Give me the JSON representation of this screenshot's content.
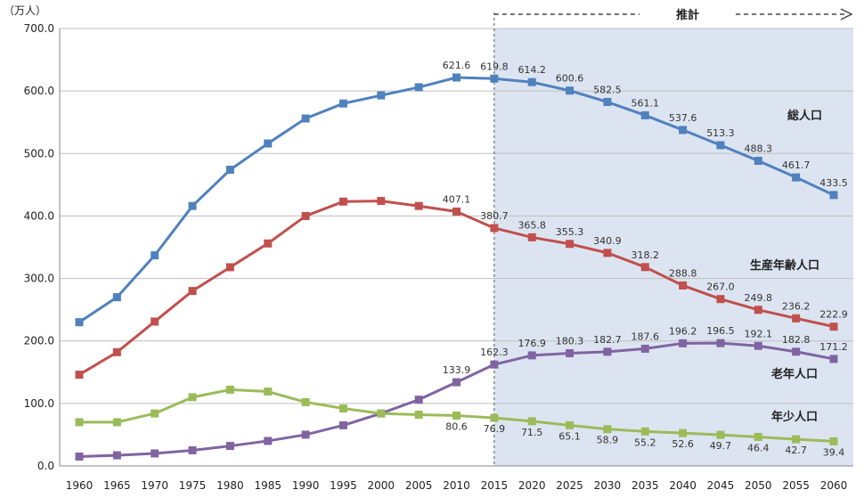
{
  "chart_data": {
    "type": "line",
    "unit_label": "（万人）",
    "projection_label": "推計",
    "projection_start": 2015,
    "ylim": [
      0,
      700
    ],
    "y_ticks": [
      "0.0",
      "100.0",
      "200.0",
      "300.0",
      "400.0",
      "500.0",
      "600.0",
      "700.0"
    ],
    "x": [
      1960,
      1965,
      1970,
      1975,
      1980,
      1985,
      1990,
      1995,
      2000,
      2005,
      2010,
      2015,
      2020,
      2025,
      2030,
      2035,
      2040,
      2045,
      2050,
      2055,
      2060
    ],
    "x_tick_labels": [
      "1960",
      "1965",
      "1970",
      "1975",
      "1980",
      "1985",
      "1990",
      "1995",
      "2000",
      "2005",
      "2010",
      "2015",
      "2020",
      "2025",
      "2030",
      "2035",
      "2040",
      "2045",
      "2050",
      "2055",
      "2060"
    ],
    "series": [
      {
        "name": "総人口",
        "color": "#4f81bd",
        "values": [
          230,
          270,
          337,
          416,
          474,
          516,
          556,
          580,
          593,
          606,
          621.6,
          619.8,
          614.2,
          600.6,
          582.5,
          561.1,
          537.6,
          513.3,
          488.3,
          461.7,
          433.5
        ],
        "labels": [
          "",
          "",
          "",
          "",
          "",
          "",
          "",
          "",
          "",
          "",
          "621.6",
          "619.8",
          "614.2",
          "600.6",
          "582.5",
          "561.1",
          "537.6",
          "513.3",
          "488.3",
          "461.7",
          "433.5"
        ]
      },
      {
        "name": "生産年齢人口",
        "color": "#c0504d",
        "values": [
          146,
          182,
          231,
          280,
          318,
          356,
          400,
          423,
          424,
          416,
          407.1,
          380.7,
          365.8,
          355.3,
          340.9,
          318.2,
          288.8,
          267.0,
          249.8,
          236.2,
          222.9
        ],
        "labels": [
          "",
          "",
          "",
          "",
          "",
          "",
          "",
          "",
          "",
          "",
          "407.1",
          "380.7",
          "365.8",
          "355.3",
          "340.9",
          "318.2",
          "288.8",
          "267.0",
          "249.8",
          "236.2",
          "222.9"
        ]
      },
      {
        "name": "老年人口",
        "color": "#8064a2",
        "values": [
          15,
          17,
          20,
          25,
          32,
          40,
          50,
          65,
          84,
          106,
          133.9,
          162.3,
          176.9,
          180.3,
          182.7,
          187.6,
          196.2,
          196.5,
          192.1,
          182.8,
          171.2
        ],
        "labels": [
          "",
          "",
          "",
          "",
          "",
          "",
          "",
          "",
          "",
          "",
          "133.9",
          "162.3",
          "176.9",
          "180.3",
          "182.7",
          "187.6",
          "196.2",
          "196.5",
          "192.1",
          "182.8",
          "171.2"
        ]
      },
      {
        "name": "年少人口",
        "color": "#9bbb59",
        "values": [
          70,
          70,
          84,
          110,
          122,
          119,
          102,
          92,
          84,
          82,
          80.6,
          76.9,
          71.5,
          65.1,
          58.9,
          55.2,
          52.6,
          49.7,
          46.4,
          42.7,
          39.4
        ],
        "labels": [
          "",
          "",
          "",
          "",
          "",
          "",
          "",
          "",
          "",
          "",
          "80.6",
          "76.9",
          "71.5",
          "65.1",
          "58.9",
          "55.2",
          "52.6",
          "49.7",
          "46.4",
          "42.7",
          "39.4"
        ]
      }
    ]
  }
}
